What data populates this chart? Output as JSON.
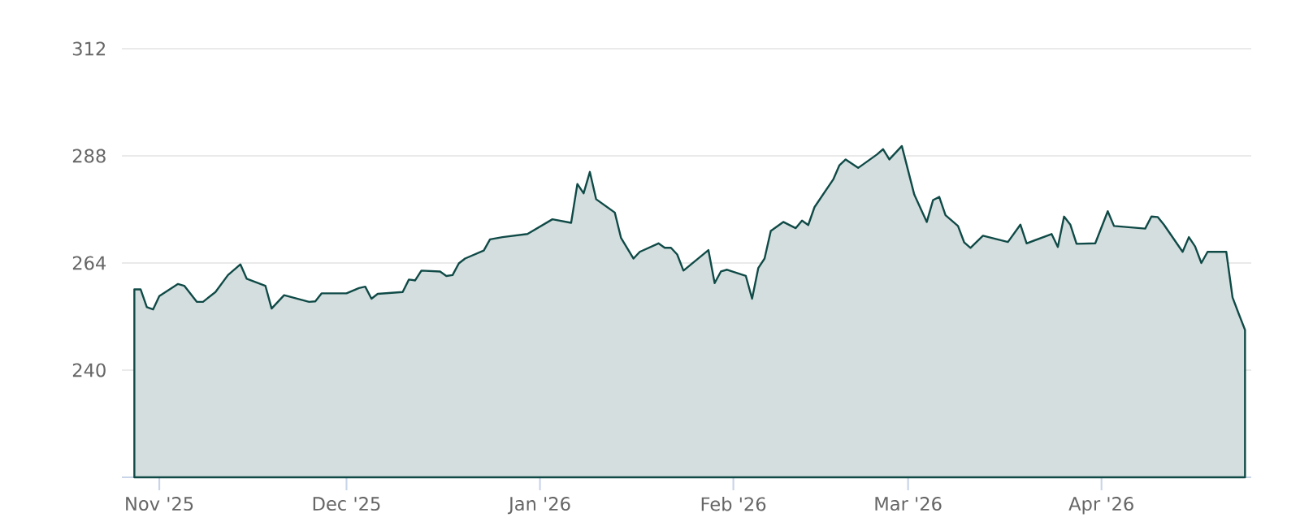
{
  "chart_data": {
    "type": "area",
    "color": "#0f4a47",
    "grid": "y",
    "x": [
      "2025-10-28",
      "2025-10-29",
      "2025-10-30",
      "2025-10-31",
      "2025-11-01",
      "2025-11-04",
      "2025-11-05",
      "2025-11-07",
      "2025-11-08",
      "2025-11-10",
      "2025-11-12",
      "2025-11-14",
      "2025-11-15",
      "2025-11-18",
      "2025-11-19",
      "2025-11-21",
      "2025-11-25",
      "2025-11-26",
      "2025-11-27",
      "2025-12-01",
      "2025-12-03",
      "2025-12-04",
      "2025-12-05",
      "2025-12-06",
      "2025-12-10",
      "2025-12-11",
      "2025-12-12",
      "2025-12-13",
      "2025-12-16",
      "2025-12-17",
      "2025-12-18",
      "2025-12-19",
      "2025-12-20",
      "2025-12-23",
      "2025-12-24",
      "2025-12-26",
      "2025-12-30",
      "2026-01-03",
      "2026-01-06",
      "2026-01-07",
      "2026-01-08",
      "2026-01-09",
      "2026-01-10",
      "2026-01-13",
      "2026-01-14",
      "2026-01-16",
      "2026-01-17",
      "2026-01-20",
      "2026-01-21",
      "2026-01-22",
      "2026-01-23",
      "2026-01-24",
      "2026-01-28",
      "2026-01-29",
      "2026-01-30",
      "2026-01-31",
      "2026-02-03",
      "2026-02-04",
      "2026-02-05",
      "2026-02-06",
      "2026-02-07",
      "2026-02-09",
      "2026-02-11",
      "2026-02-12",
      "2026-02-13",
      "2026-02-14",
      "2026-02-17",
      "2026-02-18",
      "2026-02-19",
      "2026-02-21",
      "2026-02-24",
      "2026-02-25",
      "2026-02-26",
      "2026-02-28",
      "2026-03-02",
      "2026-03-04",
      "2026-03-05",
      "2026-03-06",
      "2026-03-07",
      "2026-03-09",
      "2026-03-10",
      "2026-03-11",
      "2026-03-13",
      "2026-03-17",
      "2026-03-19",
      "2026-03-20",
      "2026-03-24",
      "2026-03-25",
      "2026-03-26",
      "2026-03-27",
      "2026-03-28",
      "2026-03-31",
      "2026-04-02",
      "2026-04-03",
      "2026-04-08",
      "2026-04-09",
      "2026-04-10",
      "2026-04-11",
      "2026-04-14",
      "2026-04-15",
      "2026-04-16",
      "2026-04-17",
      "2026-04-18",
      "2026-04-21",
      "2026-04-22",
      "2026-04-23",
      "2026-04-24"
    ],
    "values": [
      258.1,
      258.1,
      254.1,
      253.6,
      256.6,
      259.3,
      258.9,
      255.3,
      255.3,
      257.5,
      261.3,
      263.7,
      260.5,
      258.9,
      253.8,
      256.8,
      255.3,
      255.4,
      257.2,
      257.2,
      258.4,
      258.7,
      256.0,
      257.1,
      257.5,
      260.3,
      260.1,
      262.3,
      262.1,
      261.1,
      261.3,
      263.9,
      265.0,
      266.8,
      269.3,
      269.8,
      270.5,
      273.8,
      273.0,
      281.7,
      279.6,
      284.4,
      278.3,
      275.3,
      269.6,
      265.0,
      266.5,
      268.4,
      267.4,
      267.4,
      265.9,
      262.3,
      266.9,
      259.5,
      262.1,
      262.5,
      261.1,
      256.0,
      262.9,
      265.0,
      271.2,
      273.2,
      271.8,
      273.5,
      272.5,
      276.5,
      282.7,
      285.9,
      287.2,
      285.3,
      288.3,
      289.5,
      287.2,
      290.2,
      279.3,
      273.2,
      278.1,
      278.8,
      274.7,
      272.3,
      268.6,
      267.4,
      270.1,
      268.7,
      272.6,
      268.4,
      270.5,
      267.6,
      274.4,
      272.6,
      268.3,
      268.4,
      275.6,
      272.3,
      271.7,
      274.4,
      274.3,
      272.6,
      266.5,
      269.8,
      267.7,
      264.0,
      266.5,
      266.5,
      256.3,
      252.6,
      249.0
    ],
    "xlim": [
      "2025-10-26",
      "2026-04-25"
    ],
    "xticks": [
      {
        "value": "2025-11-01",
        "label": "Nov '25"
      },
      {
        "value": "2025-12-01",
        "label": "Dec '25"
      },
      {
        "value": "2026-01-01",
        "label": "Jan '26"
      },
      {
        "value": "2026-02-01",
        "label": "Feb '26"
      },
      {
        "value": "2026-03-01",
        "label": "Mar '26"
      },
      {
        "value": "2026-04-01",
        "label": "Apr '26"
      }
    ],
    "ylim": [
      216,
      312
    ],
    "yticks": [
      240,
      264,
      288,
      312
    ]
  }
}
